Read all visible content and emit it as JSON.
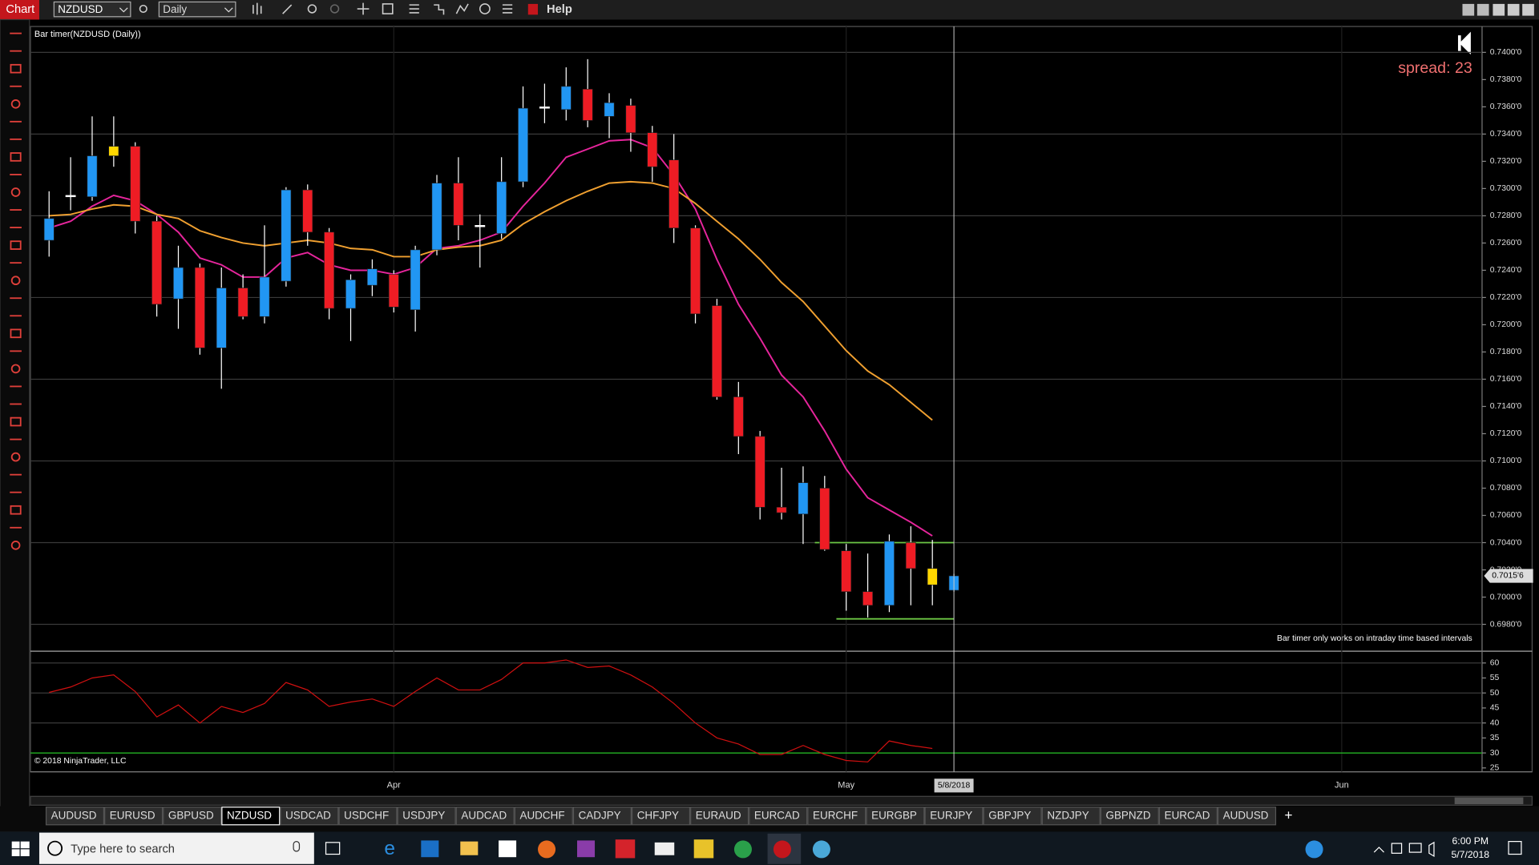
{
  "toolbar": {
    "title": "Chart",
    "instrument": "NZDUSD",
    "interval": "Daily",
    "help": "Help"
  },
  "chart_data": {
    "type": "candlestick",
    "title": "Bar timer(NZDUSD (Daily))",
    "spread": "spread: 23",
    "notice": "Bar timer only works on intraday time based intervals",
    "copyright": "© 2018 NinjaTrader, LLC",
    "ylim": [
      0.6961,
      0.7419
    ],
    "yticks": [
      {
        "value": 0.74,
        "label": "0.7400'0"
      },
      {
        "value": 0.738,
        "label": "0.7380'0"
      },
      {
        "value": 0.736,
        "label": "0.7360'0"
      },
      {
        "value": 0.734,
        "label": "0.7340'0"
      },
      {
        "value": 0.732,
        "label": "0.7320'0"
      },
      {
        "value": 0.73,
        "label": "0.7300'0"
      },
      {
        "value": 0.728,
        "label": "0.7280'0"
      },
      {
        "value": 0.726,
        "label": "0.7260'0"
      },
      {
        "value": 0.724,
        "label": "0.7240'0"
      },
      {
        "value": 0.722,
        "label": "0.7220'0"
      },
      {
        "value": 0.72,
        "label": "0.7200'0"
      },
      {
        "value": 0.718,
        "label": "0.7180'0"
      },
      {
        "value": 0.716,
        "label": "0.7160'0"
      },
      {
        "value": 0.714,
        "label": "0.7140'0"
      },
      {
        "value": 0.712,
        "label": "0.7120'0"
      },
      {
        "value": 0.71,
        "label": "0.7100'0"
      },
      {
        "value": 0.708,
        "label": "0.7080'0"
      },
      {
        "value": 0.706,
        "label": "0.7060'0"
      },
      {
        "value": 0.704,
        "label": "0.7040'0"
      },
      {
        "value": 0.702,
        "label": "0.7020'0"
      },
      {
        "value": 0.7,
        "label": "0.7000'0"
      },
      {
        "value": 0.698,
        "label": "0.6980'0"
      }
    ],
    "current_price": {
      "value": 0.70156,
      "label": "0.7015'6"
    },
    "x_labels": [
      {
        "index": 16,
        "label": "Apr"
      },
      {
        "index": 37,
        "label": "May"
      },
      {
        "index": 60,
        "label": "Jun"
      }
    ],
    "crosshair": {
      "index": 42,
      "label": "5/8/2018"
    },
    "candles": [
      {
        "o": 0.7262,
        "h": 0.7298,
        "l": 0.725,
        "c": 0.7278,
        "color": "#2196f3"
      },
      {
        "o": 0.7295,
        "h": 0.7323,
        "l": 0.7284,
        "c": 0.7295,
        "color": "#ffffff"
      },
      {
        "o": 0.7294,
        "h": 0.7353,
        "l": 0.7291,
        "c": 0.7324,
        "color": "#2196f3"
      },
      {
        "o": 0.7331,
        "h": 0.7353,
        "l": 0.7316,
        "c": 0.7324,
        "color": "#ffd700"
      },
      {
        "o": 0.7331,
        "h": 0.7334,
        "l": 0.7267,
        "c": 0.7276,
        "color": "#ee1c24"
      },
      {
        "o": 0.7276,
        "h": 0.728,
        "l": 0.7206,
        "c": 0.7215,
        "color": "#ee1c24"
      },
      {
        "o": 0.7219,
        "h": 0.7258,
        "l": 0.7197,
        "c": 0.7242,
        "color": "#2196f3"
      },
      {
        "o": 0.7242,
        "h": 0.7245,
        "l": 0.7178,
        "c": 0.7183,
        "color": "#ee1c24"
      },
      {
        "o": 0.7183,
        "h": 0.7242,
        "l": 0.7153,
        "c": 0.7227,
        "color": "#2196f3"
      },
      {
        "o": 0.7227,
        "h": 0.7237,
        "l": 0.7204,
        "c": 0.7206,
        "color": "#ee1c24"
      },
      {
        "o": 0.7206,
        "h": 0.7273,
        "l": 0.7201,
        "c": 0.7235,
        "color": "#2196f3"
      },
      {
        "o": 0.7232,
        "h": 0.7301,
        "l": 0.7228,
        "c": 0.7299,
        "color": "#2196f3"
      },
      {
        "o": 0.7299,
        "h": 0.7303,
        "l": 0.7258,
        "c": 0.7268,
        "color": "#ee1c24"
      },
      {
        "o": 0.7268,
        "h": 0.7271,
        "l": 0.7204,
        "c": 0.7212,
        "color": "#ee1c24"
      },
      {
        "o": 0.7212,
        "h": 0.7237,
        "l": 0.7188,
        "c": 0.7233,
        "color": "#2196f3"
      },
      {
        "o": 0.7229,
        "h": 0.7248,
        "l": 0.7221,
        "c": 0.7241,
        "color": "#2196f3"
      },
      {
        "o": 0.7237,
        "h": 0.724,
        "l": 0.7209,
        "c": 0.7213,
        "color": "#ee1c24"
      },
      {
        "o": 0.7211,
        "h": 0.7258,
        "l": 0.7195,
        "c": 0.7255,
        "color": "#2196f3"
      },
      {
        "o": 0.7255,
        "h": 0.731,
        "l": 0.7251,
        "c": 0.7304,
        "color": "#2196f3"
      },
      {
        "o": 0.7304,
        "h": 0.7323,
        "l": 0.7262,
        "c": 0.7273,
        "color": "#ee1c24"
      },
      {
        "o": 0.7273,
        "h": 0.7281,
        "l": 0.7242,
        "c": 0.7273,
        "color": "#ffffff"
      },
      {
        "o": 0.7267,
        "h": 0.7323,
        "l": 0.7263,
        "c": 0.7305,
        "color": "#2196f3"
      },
      {
        "o": 0.7305,
        "h": 0.7375,
        "l": 0.7301,
        "c": 0.7359,
        "color": "#2196f3"
      },
      {
        "o": 0.736,
        "h": 0.7377,
        "l": 0.7348,
        "c": 0.736,
        "color": "#ffffff"
      },
      {
        "o": 0.7358,
        "h": 0.7389,
        "l": 0.735,
        "c": 0.7375,
        "color": "#2196f3"
      },
      {
        "o": 0.7373,
        "h": 0.7395,
        "l": 0.7345,
        "c": 0.735,
        "color": "#ee1c24"
      },
      {
        "o": 0.7353,
        "h": 0.737,
        "l": 0.7337,
        "c": 0.7363,
        "color": "#2196f3"
      },
      {
        "o": 0.7361,
        "h": 0.7366,
        "l": 0.7327,
        "c": 0.7341,
        "color": "#ee1c24"
      },
      {
        "o": 0.7341,
        "h": 0.7346,
        "l": 0.7305,
        "c": 0.7316,
        "color": "#ee1c24"
      },
      {
        "o": 0.7321,
        "h": 0.734,
        "l": 0.726,
        "c": 0.7271,
        "color": "#ee1c24"
      },
      {
        "o": 0.7271,
        "h": 0.7273,
        "l": 0.7201,
        "c": 0.7208,
        "color": "#ee1c24"
      },
      {
        "o": 0.7214,
        "h": 0.7219,
        "l": 0.7145,
        "c": 0.7147,
        "color": "#ee1c24"
      },
      {
        "o": 0.7147,
        "h": 0.7158,
        "l": 0.7105,
        "c": 0.7118,
        "color": "#ee1c24"
      },
      {
        "o": 0.7118,
        "h": 0.7122,
        "l": 0.7057,
        "c": 0.7066,
        "color": "#ee1c24"
      },
      {
        "o": 0.7066,
        "h": 0.7095,
        "l": 0.7057,
        "c": 0.7062,
        "color": "#ee1c24"
      },
      {
        "o": 0.7061,
        "h": 0.7096,
        "l": 0.7039,
        "c": 0.7084,
        "color": "#2196f3"
      },
      {
        "o": 0.708,
        "h": 0.7089,
        "l": 0.7034,
        "c": 0.7035,
        "color": "#ee1c24"
      },
      {
        "o": 0.7034,
        "h": 0.7039,
        "l": 0.699,
        "c": 0.7004,
        "color": "#ee1c24"
      },
      {
        "o": 0.7004,
        "h": 0.7032,
        "l": 0.6985,
        "c": 0.6994,
        "color": "#ee1c24"
      },
      {
        "o": 0.6994,
        "h": 0.7046,
        "l": 0.6989,
        "c": 0.7041,
        "color": "#2196f3"
      },
      {
        "o": 0.704,
        "h": 0.7052,
        "l": 0.6994,
        "c": 0.7021,
        "color": "#ee1c24"
      },
      {
        "o": 0.7021,
        "h": 0.7042,
        "l": 0.6994,
        "c": 0.7009,
        "color": "#ffd700"
      },
      {
        "o": 0.7005,
        "h": 0.7017,
        "l": 0.7004,
        "c": 0.70156,
        "color": "#2196f3"
      }
    ],
    "series": [
      {
        "color": "#e6259c",
        "values": [
          0.7271,
          0.7276,
          0.7287,
          0.7295,
          0.7291,
          0.7281,
          0.7268,
          0.7249,
          0.7244,
          0.7235,
          0.7235,
          0.7249,
          0.7253,
          0.7244,
          0.724,
          0.724,
          0.7237,
          0.7242,
          0.7256,
          0.7258,
          0.7262,
          0.7268,
          0.7287,
          0.7304,
          0.7323,
          0.7329,
          0.7335,
          0.7336,
          0.733,
          0.731,
          0.7285,
          0.7248,
          0.7215,
          0.719,
          0.7163,
          0.7147,
          0.7122,
          0.7094,
          0.7073,
          0.7064,
          0.7055,
          0.7045,
          null
        ]
      },
      {
        "color": "#f0a030",
        "values": [
          0.728,
          0.7281,
          0.7285,
          0.7288,
          0.7287,
          0.7281,
          0.7278,
          0.7269,
          0.7264,
          0.726,
          0.7258,
          0.726,
          0.7262,
          0.726,
          0.7256,
          0.7255,
          0.725,
          0.725,
          0.7255,
          0.7257,
          0.7258,
          0.7262,
          0.7274,
          0.7283,
          0.7291,
          0.7298,
          0.7304,
          0.7305,
          0.7304,
          0.73,
          0.7289,
          0.7276,
          0.7263,
          0.7248,
          0.7231,
          0.7217,
          0.7199,
          0.7181,
          0.7166,
          0.7156,
          0.7143,
          0.713,
          null
        ]
      }
    ],
    "levels": [
      {
        "value": 0.704,
        "from": 36,
        "color": "#6cc644"
      },
      {
        "value": 0.6984,
        "from": 37,
        "color": "#6cc644"
      }
    ],
    "indicator": {
      "ylim": [
        23.7,
        63.6
      ],
      "yticks": [
        60,
        55,
        50,
        45,
        40,
        35,
        30,
        25
      ],
      "level": 30,
      "level_color": "#22c022",
      "color": "#d01010",
      "values": [
        50.2,
        52,
        55,
        56,
        50.5,
        42,
        46,
        40,
        45.5,
        43.5,
        46.5,
        53.5,
        51,
        45.5,
        47,
        48,
        45.5,
        50.5,
        55,
        51,
        51,
        54.5,
        60,
        60,
        61,
        58.5,
        59,
        56,
        52,
        46.5,
        40,
        35,
        33,
        29.5,
        29.5,
        32.5,
        29.5,
        27.5,
        27,
        34,
        32.5,
        31.5,
        null
      ]
    }
  },
  "tabs": {
    "active": 3,
    "items": [
      "AUDUSD",
      "EURUSD",
      "GBPUSD",
      "NZDUSD",
      "USDCAD",
      "USDCHF",
      "USDJPY",
      "AUDCAD",
      "AUDCHF",
      "CADJPY",
      "CHFJPY",
      "EURAUD",
      "EURCAD",
      "EURCHF",
      "EURGBP",
      "EURJPY",
      "GBPJPY",
      "NZDJPY",
      "GBPNZD",
      "EURCAD",
      "AUDUSD"
    ],
    "add": "+"
  },
  "taskbar": {
    "search": "Type here to search",
    "time": "6:00 PM",
    "date": "5/7/2018"
  }
}
